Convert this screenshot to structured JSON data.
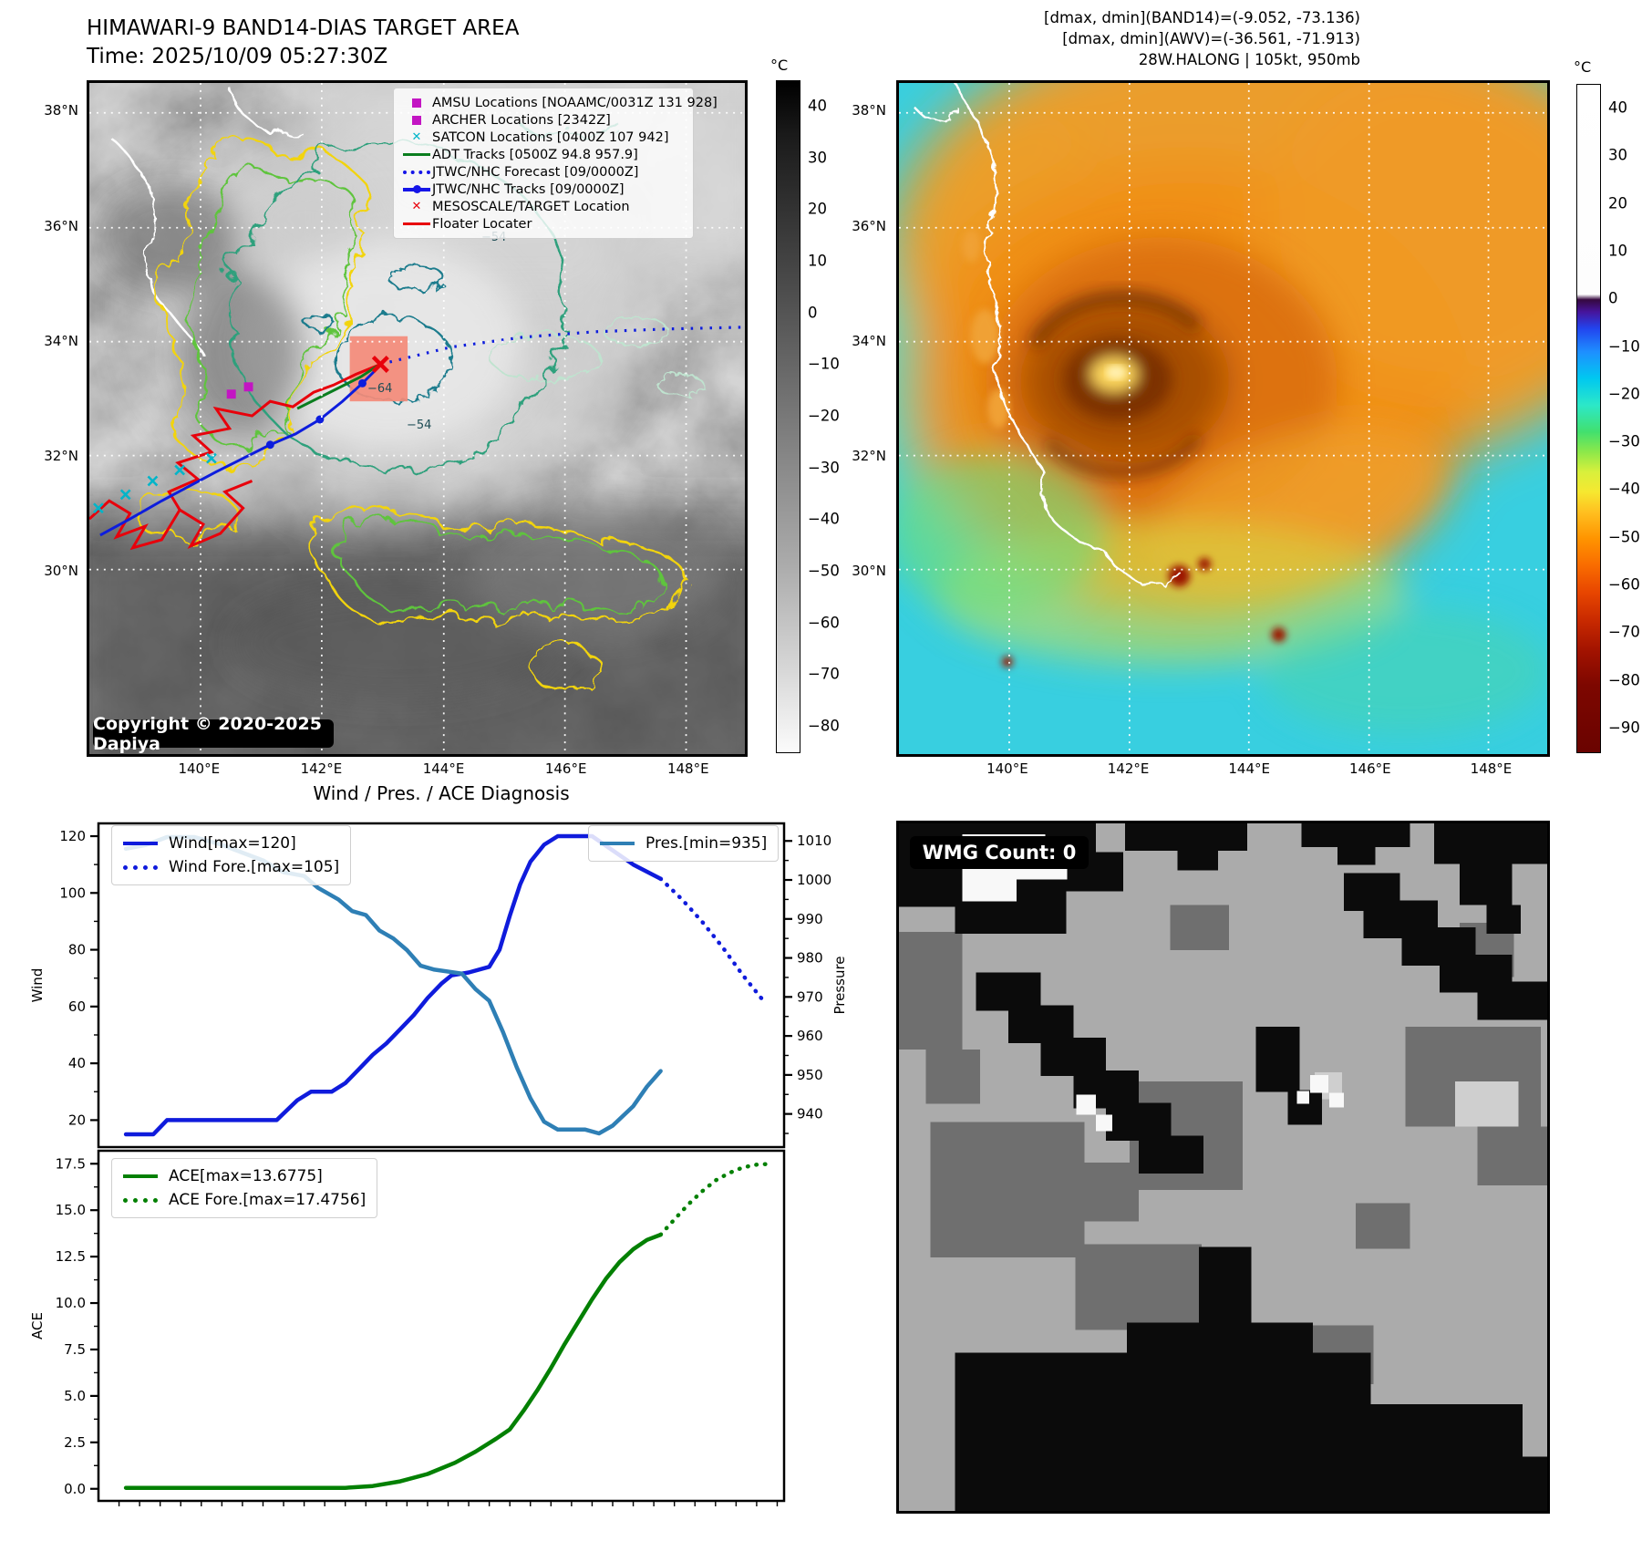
{
  "header": {
    "title_line1": "HIMAWARI-9 BAND14-DIAS TARGET AREA",
    "title_line2": "Time: 2025/10/09 05:27:30Z",
    "right_line1": "[dmax, dmin](BAND14)=(-9.052, -73.136)",
    "right_line2": "[dmax, dmin](AWV)=(-36.561, -71.913)",
    "right_line3": "28W.HALONG | 105kt, 950mb"
  },
  "colors": {
    "wind_line": "#0f1bdc",
    "pressure_line": "#2e7fb5",
    "ace_line": "#038003",
    "floater_track": "#e8000b",
    "adt_track": "#0a7d1e",
    "amsu_marker": "#c315c3",
    "satcon_marker": "#00b5c9"
  },
  "left_map": {
    "legend": {
      "items": [
        {
          "label": "AMSU Locations [NOAAMC/0031Z 131 928]",
          "marker": "square",
          "color": "#c315c3"
        },
        {
          "label": "ARCHER Locations [2342Z]",
          "marker": "square",
          "color": "#c315c3"
        },
        {
          "label": "SATCON Locations [0400Z 107 942]",
          "marker": "x",
          "color": "#00b5c9"
        },
        {
          "label": "ADT Tracks [0500Z 94.8 957.9]",
          "marker": "line",
          "color": "#0a7d1e"
        },
        {
          "label": "JTWC/NHC Forecast [09/0000Z]",
          "marker": "dotted-line",
          "color": "#1515e8"
        },
        {
          "label": "JTWC/NHC Tracks [09/0000Z]",
          "marker": "line-dot",
          "color": "#1515e8"
        },
        {
          "label": "MESOSCALE/TARGET Location",
          "marker": "x",
          "color": "#e8000b"
        },
        {
          "label": "Floater Locater",
          "marker": "line",
          "color": "#e8000b"
        }
      ]
    },
    "copyright": "Copyright © 2020-2025 Dapiya",
    "contour_labels": {
      "a": "−54",
      "b": "−64",
      "c": "−54"
    },
    "x_ticks": [
      {
        "label": "140°E",
        "pos": 17
      },
      {
        "label": "142°E",
        "pos": 35.5
      },
      {
        "label": "144°E",
        "pos": 54
      },
      {
        "label": "146°E",
        "pos": 72.5
      },
      {
        "label": "148°E",
        "pos": 91
      }
    ],
    "y_ticks": [
      {
        "label": "38°N",
        "pos": 4.5
      },
      {
        "label": "36°N",
        "pos": 21.5
      },
      {
        "label": "34°N",
        "pos": 38.5
      },
      {
        "label": "32°N",
        "pos": 55.5
      },
      {
        "label": "30°N",
        "pos": 72.5
      }
    ],
    "colorbar": {
      "unit": "°C",
      "ticks": [
        {
          "label": "40",
          "pos": 3.8
        },
        {
          "label": "30",
          "pos": 11.5
        },
        {
          "label": "20",
          "pos": 19.2
        },
        {
          "label": "10",
          "pos": 26.9
        },
        {
          "label": "0",
          "pos": 34.6
        },
        {
          "label": "−10",
          "pos": 42.3
        },
        {
          "label": "−20",
          "pos": 50
        },
        {
          "label": "−30",
          "pos": 57.7
        },
        {
          "label": "−40",
          "pos": 65.4
        },
        {
          "label": "−50",
          "pos": 73.1
        },
        {
          "label": "−60",
          "pos": 80.8
        },
        {
          "label": "−70",
          "pos": 88.5
        },
        {
          "label": "−80",
          "pos": 96.2
        }
      ]
    }
  },
  "right_map": {
    "x_ticks": [
      {
        "label": "140°E",
        "pos": 17
      },
      {
        "label": "142°E",
        "pos": 35.5
      },
      {
        "label": "144°E",
        "pos": 54
      },
      {
        "label": "146°E",
        "pos": 72.5
      },
      {
        "label": "148°E",
        "pos": 91
      }
    ],
    "y_ticks": [
      {
        "label": "38°N",
        "pos": 4.5
      },
      {
        "label": "36°N",
        "pos": 21.5
      },
      {
        "label": "34°N",
        "pos": 38.5
      },
      {
        "label": "32°N",
        "pos": 55.5
      },
      {
        "label": "30°N",
        "pos": 72.5
      }
    ],
    "colorbar": {
      "unit": "°C",
      "ticks": [
        {
          "label": "40",
          "pos": 3.6
        },
        {
          "label": "30",
          "pos": 10.7
        },
        {
          "label": "20",
          "pos": 17.9
        },
        {
          "label": "10",
          "pos": 25
        },
        {
          "label": "0",
          "pos": 32.1
        },
        {
          "label": "−10",
          "pos": 39.3
        },
        {
          "label": "−20",
          "pos": 46.4
        },
        {
          "label": "−30",
          "pos": 53.6
        },
        {
          "label": "−40",
          "pos": 60.7
        },
        {
          "label": "−50",
          "pos": 67.9
        },
        {
          "label": "−60",
          "pos": 75
        },
        {
          "label": "−70",
          "pos": 82.1
        },
        {
          "label": "−80",
          "pos": 89.3
        },
        {
          "label": "−90",
          "pos": 96.4
        }
      ]
    }
  },
  "wmg": {
    "count_label": "WMG Count: 0"
  },
  "chart_data": [
    {
      "type": "line",
      "title": "Wind / Pres. / ACE Diagnosis",
      "ylabel_left": "Wind",
      "ylabel_right": "Pressure",
      "xlim": [
        0,
        100
      ],
      "ylim_left": [
        10.5,
        124.5
      ],
      "yticks_left": [
        [
          20,
          "20"
        ],
        [
          40,
          "40"
        ],
        [
          60,
          "60"
        ],
        [
          80,
          "80"
        ],
        [
          100,
          "100"
        ],
        [
          120,
          "120"
        ]
      ],
      "yminor_left": 10,
      "ylim_right": [
        931.5,
        1014.5
      ],
      "yticks_right": [
        [
          940,
          "940"
        ],
        [
          950,
          "950"
        ],
        [
          960,
          "960"
        ],
        [
          970,
          "970"
        ],
        [
          980,
          "980"
        ],
        [
          990,
          "990"
        ],
        [
          1000,
          "1000"
        ],
        [
          1010,
          "1010"
        ]
      ],
      "yminor_right": 5,
      "grid": false,
      "legend_position": "upper-left and upper-right",
      "series": [
        {
          "name": "Wind[max=120]",
          "axis": "left",
          "style": "solid",
          "color": "#0f1bdc",
          "points": [
            [
              4,
              15
            ],
            [
              8,
              15
            ],
            [
              10,
              20
            ],
            [
              26,
              20
            ],
            [
              29,
              27
            ],
            [
              31,
              30
            ],
            [
              34,
              30
            ],
            [
              36,
              33
            ],
            [
              38,
              38
            ],
            [
              40,
              43
            ],
            [
              42,
              47
            ],
            [
              44,
              52
            ],
            [
              46,
              57
            ],
            [
              48,
              63
            ],
            [
              50,
              68
            ],
            [
              51.5,
              71
            ],
            [
              54,
              72
            ],
            [
              57,
              74
            ],
            [
              58.5,
              80
            ],
            [
              60,
              92
            ],
            [
              61.5,
              103
            ],
            [
              63,
              111
            ],
            [
              65,
              117
            ],
            [
              67,
              120
            ],
            [
              72,
              120
            ],
            [
              75,
              115
            ],
            [
              78,
              110
            ],
            [
              82,
              105
            ]
          ]
        },
        {
          "name": "Wind Fore.[max=105]",
          "axis": "left",
          "style": "dotted",
          "color": "#0f1bdc",
          "points": [
            [
              82,
              105
            ],
            [
              85,
              98
            ],
            [
              88,
              90
            ],
            [
              91,
              81
            ],
            [
              94,
              71
            ],
            [
              97,
              62
            ]
          ]
        },
        {
          "name": "Pres.[min=935]",
          "axis": "right",
          "style": "solid",
          "color": "#2e7fb5",
          "points": [
            [
              4,
              1008
            ],
            [
              7,
              1009
            ],
            [
              10,
              1011
            ],
            [
              14,
              1011
            ],
            [
              18,
              1009
            ],
            [
              21,
              1007
            ],
            [
              24,
              1005
            ],
            [
              27,
              1002
            ],
            [
              30,
              1001
            ],
            [
              32,
              998
            ],
            [
              35,
              995
            ],
            [
              37,
              992
            ],
            [
              39,
              991
            ],
            [
              41,
              987
            ],
            [
              43,
              985
            ],
            [
              45,
              982
            ],
            [
              47,
              978
            ],
            [
              49,
              977
            ],
            [
              53,
              976
            ],
            [
              55,
              972
            ],
            [
              57,
              969
            ],
            [
              59,
              961
            ],
            [
              61,
              952
            ],
            [
              63,
              944
            ],
            [
              65,
              938
            ],
            [
              67,
              936
            ],
            [
              71,
              936
            ],
            [
              73,
              935
            ],
            [
              75,
              937
            ],
            [
              78,
              942
            ],
            [
              80,
              947
            ],
            [
              82,
              951
            ]
          ]
        }
      ]
    },
    {
      "type": "line",
      "ylabel_left": "ACE",
      "xlim": [
        0,
        100
      ],
      "ylim_left": [
        -0.65,
        18.2
      ],
      "yticks_left": [
        [
          0,
          "0.0"
        ],
        [
          2.5,
          "2.5"
        ],
        [
          5,
          "5.0"
        ],
        [
          7.5,
          "7.5"
        ],
        [
          10,
          "10.0"
        ],
        [
          12.5,
          "12.5"
        ],
        [
          15,
          "15.0"
        ],
        [
          17.5,
          "17.5"
        ]
      ],
      "yminor_left": 1.25,
      "xticks_minor": 3,
      "grid": false,
      "legend_position": "upper-left",
      "series": [
        {
          "name": "ACE[max=13.6775]",
          "axis": "left",
          "style": "solid",
          "color": "#038003",
          "points": [
            [
              4,
              0.05
            ],
            [
              20,
              0.05
            ],
            [
              36,
              0.05
            ],
            [
              40,
              0.15
            ],
            [
              44,
              0.4
            ],
            [
              48,
              0.8
            ],
            [
              52,
              1.4
            ],
            [
              55,
              2.0
            ],
            [
              58,
              2.7
            ],
            [
              60,
              3.2
            ],
            [
              62,
              4.2
            ],
            [
              64,
              5.3
            ],
            [
              66,
              6.5
            ],
            [
              68,
              7.8
            ],
            [
              70,
              9.0
            ],
            [
              72,
              10.2
            ],
            [
              74,
              11.3
            ],
            [
              76,
              12.2
            ],
            [
              78,
              12.9
            ],
            [
              80,
              13.4
            ],
            [
              82,
              13.68
            ]
          ]
        },
        {
          "name": "ACE Fore.[max=17.4756]",
          "axis": "left",
          "style": "dotted",
          "color": "#038003",
          "points": [
            [
              82,
              13.68
            ],
            [
              84,
              14.5
            ],
            [
              86,
              15.3
            ],
            [
              88,
              16.0
            ],
            [
              90,
              16.6
            ],
            [
              92,
              17.0
            ],
            [
              94,
              17.3
            ],
            [
              96,
              17.45
            ],
            [
              97.3,
              17.48
            ]
          ]
        }
      ]
    }
  ]
}
